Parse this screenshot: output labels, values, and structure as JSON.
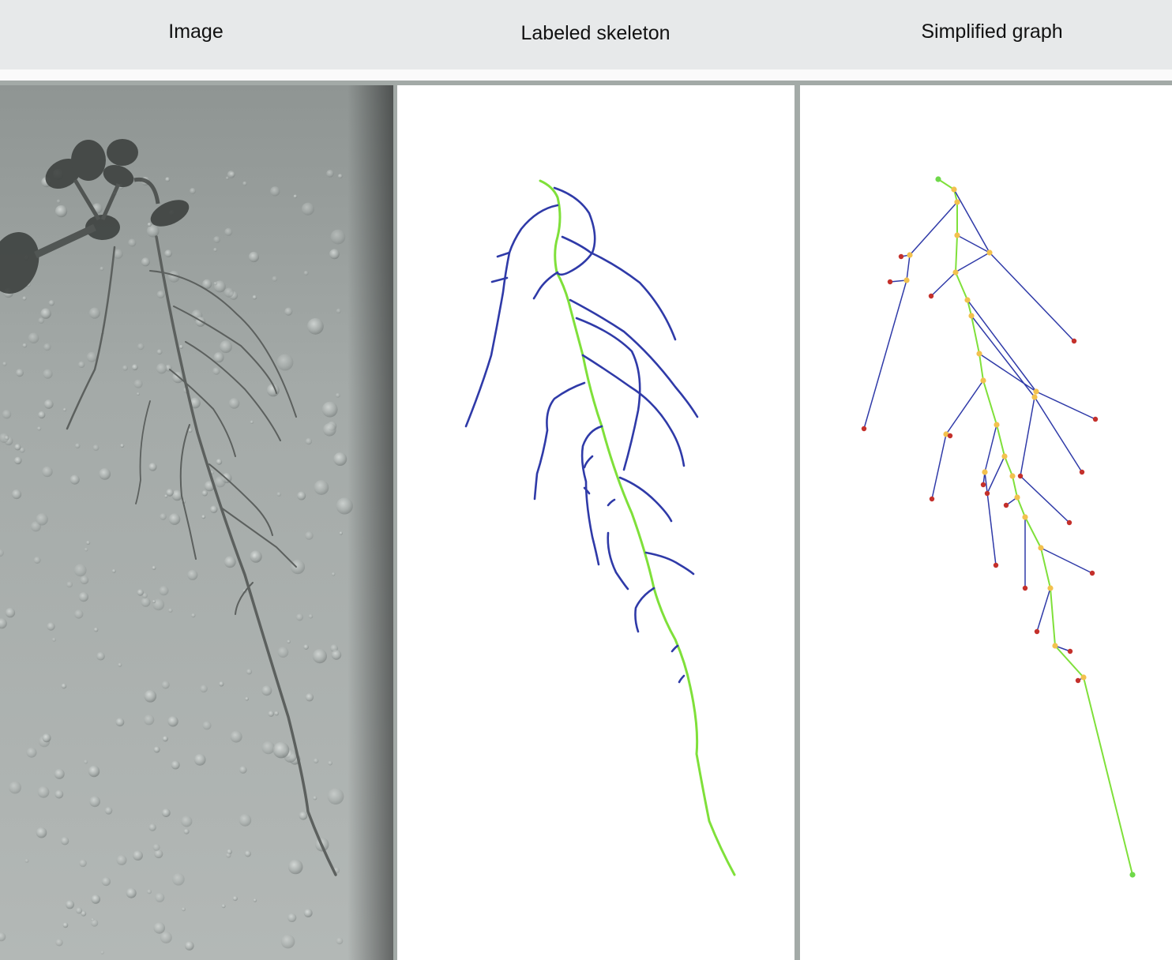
{
  "headers": {
    "image": "Image",
    "skeleton": "Labeled skeleton",
    "graph": "Simplified graph"
  },
  "colors": {
    "header_bg": "#e7e9ea",
    "main_root": "#7fe03a",
    "lateral_root": "#2f3aa8",
    "junction_node": "#f2c14e",
    "tip_node": "#c4302b",
    "root_end_node": "#6fd84a"
  }
}
